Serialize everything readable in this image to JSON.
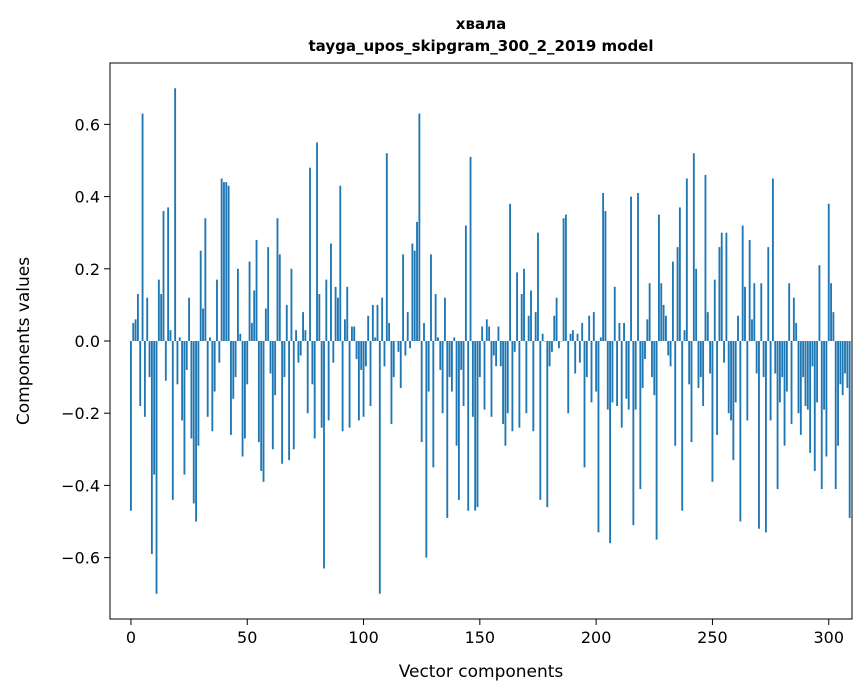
{
  "chart_data": {
    "type": "bar",
    "title": "хвала",
    "subtitle": "tayga_upos_skipgram_300_2_2019 model",
    "xlabel": "Vector components",
    "ylabel": "Components values",
    "xlim": [
      -9,
      310
    ],
    "ylim": [
      -0.77,
      0.77
    ],
    "xticks": [
      0,
      50,
      100,
      150,
      200,
      250,
      300
    ],
    "yticks": [
      -0.6,
      -0.4,
      -0.2,
      0.0,
      0.2,
      0.4,
      0.6
    ],
    "ytick_labels": [
      "−0.6",
      "−0.4",
      "−0.2",
      "0.0",
      "0.2",
      "0.4",
      "0.6"
    ],
    "grid": false,
    "bar_color": "#1f77b4",
    "values": [
      -0.47,
      0.05,
      0.06,
      0.13,
      -0.18,
      0.63,
      -0.21,
      0.12,
      -0.1,
      -0.59,
      -0.37,
      -0.7,
      0.17,
      0.13,
      0.36,
      -0.11,
      0.37,
      0.03,
      -0.44,
      0.7,
      -0.12,
      0.01,
      -0.22,
      -0.37,
      -0.08,
      0.12,
      -0.27,
      -0.45,
      -0.5,
      -0.29,
      0.25,
      0.09,
      0.34,
      -0.21,
      0.01,
      -0.25,
      -0.14,
      0.17,
      -0.06,
      0.45,
      0.44,
      0.44,
      0.43,
      -0.26,
      -0.16,
      -0.1,
      0.2,
      0.02,
      -0.32,
      -0.27,
      -0.12,
      0.22,
      0.05,
      0.14,
      0.28,
      -0.28,
      -0.36,
      -0.39,
      0.09,
      0.26,
      -0.09,
      -0.3,
      -0.15,
      0.34,
      0.24,
      -0.34,
      -0.1,
      0.1,
      -0.33,
      0.2,
      -0.3,
      0.03,
      -0.06,
      -0.04,
      0.08,
      0.03,
      -0.2,
      0.48,
      -0.12,
      -0.27,
      0.55,
      0.13,
      -0.24,
      -0.63,
      0.17,
      -0.22,
      0.27,
      -0.06,
      0.15,
      0.12,
      0.43,
      -0.25,
      0.06,
      0.15,
      -0.24,
      0.04,
      0.04,
      -0.05,
      -0.22,
      -0.08,
      -0.21,
      -0.07,
      0.07,
      -0.18,
      0.1,
      0.01,
      0.1,
      -0.7,
      0.12,
      -0.07,
      0.52,
      0.05,
      -0.23,
      -0.1,
      0.0,
      -0.03,
      -0.13,
      0.24,
      -0.04,
      0.08,
      -0.02,
      0.27,
      0.25,
      0.33,
      0.63,
      -0.28,
      0.05,
      -0.6,
      -0.14,
      0.24,
      -0.35,
      0.13,
      0.01,
      -0.08,
      -0.2,
      0.12,
      -0.49,
      -0.1,
      -0.14,
      0.01,
      -0.29,
      -0.44,
      -0.08,
      -0.18,
      0.32,
      -0.47,
      0.51,
      -0.21,
      -0.47,
      -0.46,
      -0.1,
      0.04,
      -0.19,
      0.06,
      0.04,
      -0.21,
      -0.04,
      -0.07,
      0.04,
      -0.07,
      -0.23,
      -0.29,
      -0.2,
      0.38,
      -0.25,
      -0.03,
      0.19,
      -0.24,
      0.13,
      0.2,
      -0.2,
      0.07,
      0.14,
      -0.25,
      0.08,
      0.3,
      -0.44,
      0.02,
      0.0,
      -0.46,
      -0.07,
      -0.03,
      0.07,
      0.12,
      -0.02,
      0.0,
      0.34,
      0.35,
      -0.2,
      0.02,
      0.03,
      -0.09,
      0.02,
      -0.06,
      0.05,
      -0.35,
      -0.1,
      0.07,
      -0.17,
      0.08,
      -0.14,
      -0.53,
      0.01,
      0.41,
      0.36,
      -0.19,
      -0.56,
      -0.17,
      0.15,
      -0.18,
      0.05,
      -0.24,
      0.05,
      -0.16,
      -0.19,
      0.4,
      -0.51,
      -0.19,
      0.41,
      -0.41,
      -0.13,
      -0.05,
      0.06,
      0.16,
      -0.1,
      -0.15,
      -0.55,
      0.35,
      0.16,
      0.1,
      0.07,
      -0.04,
      -0.07,
      0.22,
      -0.29,
      0.26,
      0.37,
      -0.47,
      0.03,
      0.45,
      -0.12,
      -0.28,
      0.52,
      0.2,
      -0.13,
      -0.1,
      -0.18,
      0.46,
      0.08,
      -0.09,
      -0.39,
      0.17,
      -0.26,
      0.26,
      0.3,
      -0.06,
      0.3,
      -0.2,
      -0.22,
      -0.33,
      -0.17,
      0.07,
      -0.5,
      0.32,
      0.15,
      -0.22,
      0.28,
      0.06,
      0.16,
      -0.09,
      -0.52,
      0.16,
      -0.1,
      -0.53,
      0.26,
      -0.22,
      0.45,
      -0.09,
      -0.41,
      -0.17,
      -0.1,
      -0.29,
      -0.14,
      0.16,
      -0.23,
      0.12,
      0.05,
      -0.2,
      -0.26,
      -0.1,
      -0.18,
      -0.19,
      -0.31,
      -0.07,
      -0.36,
      -0.17,
      0.21,
      -0.41,
      -0.19,
      -0.32,
      0.38,
      0.16,
      0.08,
      -0.41,
      -0.29,
      -0.12,
      -0.15,
      -0.09,
      -0.13,
      -0.49
    ]
  }
}
